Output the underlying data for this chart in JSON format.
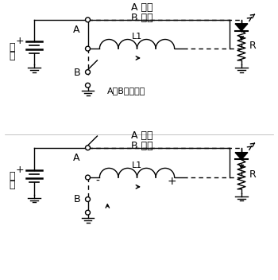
{
  "bg_color": "#ffffff",
  "lc": "#000000",
  "lw": 1.0,
  "top_label1": "A 导通",
  "top_label2": "B 关断",
  "bottom_label1": "A 关断",
  "bottom_label2": "B 导通",
  "mid_label": "A、B轮流导通",
  "L1": "L1",
  "R": "R",
  "plus": "+",
  "minus": "-",
  "dian": "电",
  "chi": "池",
  "A": "A",
  "B": "B"
}
